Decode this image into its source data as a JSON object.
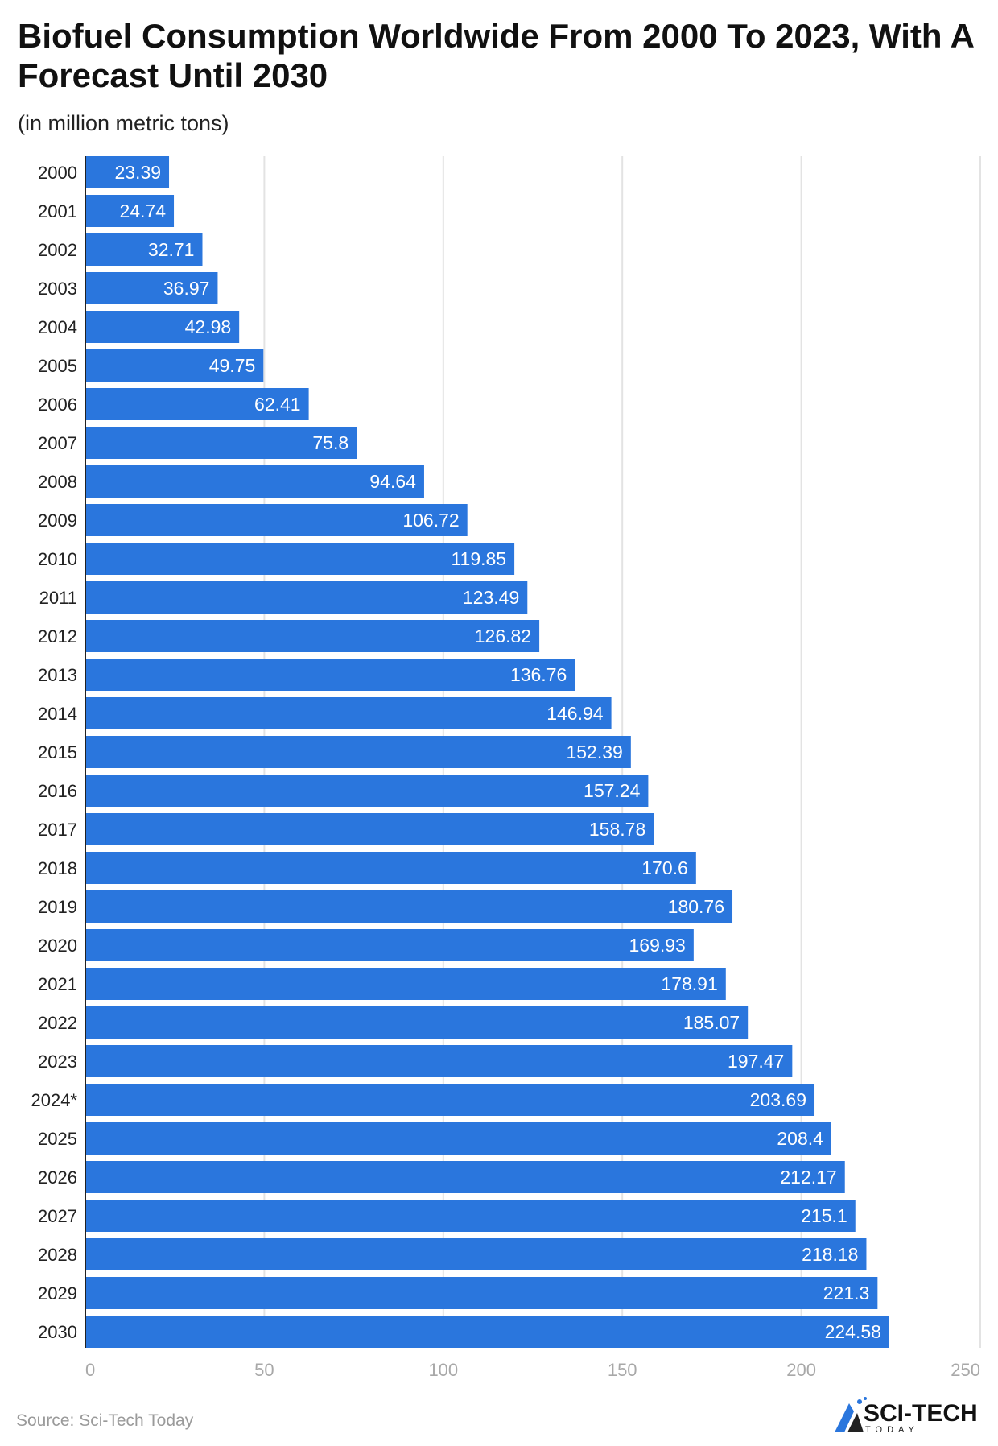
{
  "chart_data": {
    "type": "bar",
    "orientation": "horizontal",
    "title": "Biofuel Consumption Worldwide From 2000 To 2023, With A Forecast Until 2030",
    "subtitle": "(in million metric tons)",
    "categories": [
      "2000",
      "2001",
      "2002",
      "2003",
      "2004",
      "2005",
      "2006",
      "2007",
      "2008",
      "2009",
      "2010",
      "2011",
      "2012",
      "2013",
      "2014",
      "2015",
      "2016",
      "2017",
      "2018",
      "2019",
      "2020",
      "2021",
      "2022",
      "2023",
      "2024*",
      "2025",
      "2026",
      "2027",
      "2028",
      "2029",
      "2030"
    ],
    "values": [
      23.39,
      24.74,
      32.71,
      36.97,
      42.98,
      49.75,
      62.41,
      75.8,
      94.64,
      106.72,
      119.85,
      123.49,
      126.82,
      136.76,
      146.94,
      152.39,
      157.24,
      158.78,
      170.6,
      180.76,
      169.93,
      178.91,
      185.07,
      197.47,
      203.69,
      208.4,
      212.17,
      215.1,
      218.18,
      221.3,
      224.58
    ],
    "value_labels": [
      "23.39",
      "24.74",
      "32.71",
      "36.97",
      "42.98",
      "49.75",
      "62.41",
      "75.8",
      "94.64",
      "106.72",
      "119.85",
      "123.49",
      "126.82",
      "136.76",
      "146.94",
      "152.39",
      "157.24",
      "158.78",
      "170.6",
      "180.76",
      "169.93",
      "178.91",
      "185.07",
      "197.47",
      "203.69",
      "208.4",
      "212.17",
      "215.1",
      "218.18",
      "221.3",
      "224.58"
    ],
    "xlim": [
      0,
      250
    ],
    "xticks": [
      "0",
      "50",
      "100",
      "150",
      "200",
      "250"
    ],
    "grid": true,
    "bar_color": "#2a76dd",
    "xlabel": "",
    "ylabel": ""
  },
  "source": "Source: Sci-Tech Today",
  "logo": {
    "text": "SCI-TECH",
    "subtext": "TODAY"
  }
}
